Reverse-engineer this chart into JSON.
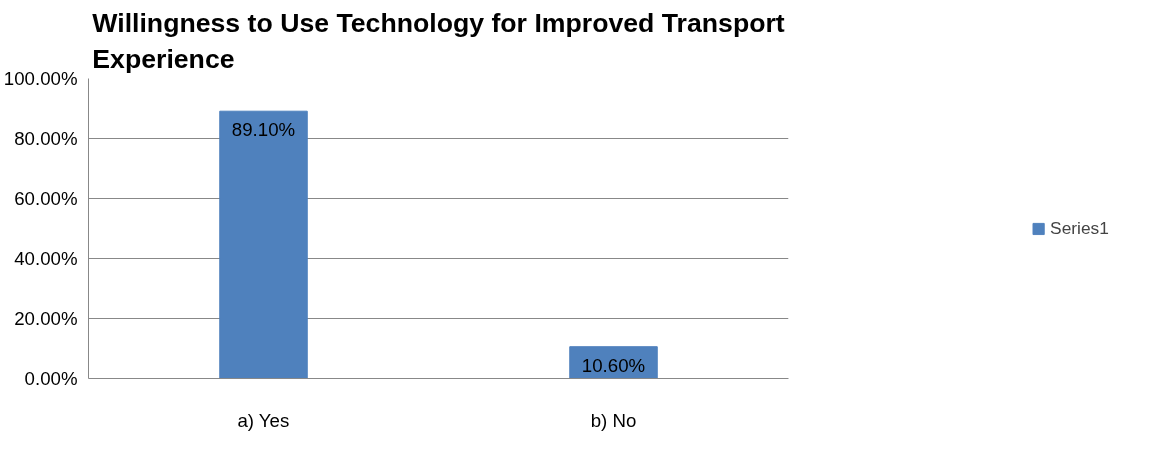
{
  "chart_data": {
    "type": "bar",
    "title": "Willingness to Use Technology for Improved Transport Experience",
    "categories": [
      "a) Yes",
      "b) No"
    ],
    "series": [
      {
        "name": "Series1",
        "color": "#4f81bd",
        "values": [
          89.1,
          10.6
        ]
      }
    ],
    "value_labels": [
      "89.10%",
      "10.60%"
    ],
    "ylim": [
      0,
      100
    ],
    "yticks": [
      {
        "value": 0,
        "label": "0.00%"
      },
      {
        "value": 20,
        "label": "20.00%"
      },
      {
        "value": 40,
        "label": "40.00%"
      },
      {
        "value": 60,
        "label": "60.00%"
      },
      {
        "value": 80,
        "label": "80.00%"
      },
      {
        "value": 100,
        "label": "100.00%"
      }
    ],
    "grid": "y",
    "legend": "right"
  }
}
